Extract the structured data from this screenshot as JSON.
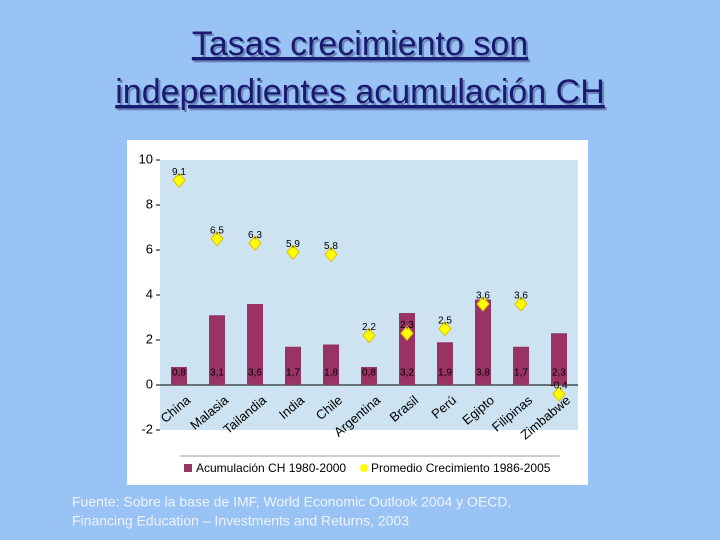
{
  "chart_data": {
    "type": "bar",
    "title": [
      "Tasas crecimiento son",
      "independientes acumulación CH"
    ],
    "categories": [
      "China",
      "Malasia",
      "Tailandia",
      "India",
      "Chile",
      "Argentina",
      "Brasil",
      "Perú",
      "Egipto",
      "Filipinas",
      "Zimbabwe"
    ],
    "series": [
      {
        "name": "Acumulación CH 1980-2000",
        "type": "bar",
        "color": "#993366",
        "values": [
          0.8,
          3.1,
          3.6,
          1.7,
          1.8,
          0.8,
          3.2,
          1.9,
          3.8,
          1.7,
          2.3
        ],
        "value_labels": [
          "0,8",
          "3,1",
          "3,6",
          "1,7",
          "1,8",
          "0,8",
          "3,2",
          "1,9",
          "3,8",
          "1,7",
          "2,3"
        ]
      },
      {
        "name": "Promedio Crecimiento 1986-2005",
        "type": "scatter",
        "color": "#ffff00",
        "values": [
          9.1,
          6.5,
          6.3,
          5.9,
          5.8,
          2.2,
          2.3,
          2.5,
          3.6,
          3.6,
          -0.4
        ],
        "value_labels": [
          "9,1",
          "6,5",
          "6,3",
          "5,9",
          "5,8",
          "2,2",
          "2,3",
          "2,5",
          "3,6",
          "3,6",
          "-0,4"
        ]
      }
    ],
    "ylim": [
      -2,
      10
    ],
    "yticks": [
      -2,
      0,
      2,
      4,
      6,
      8,
      10
    ],
    "source": [
      "Fuente: Sobre la base de IMF, World Economic Outlook 2004 y OECD,",
      "Financing Education – Investments and Returns, 2003"
    ]
  }
}
